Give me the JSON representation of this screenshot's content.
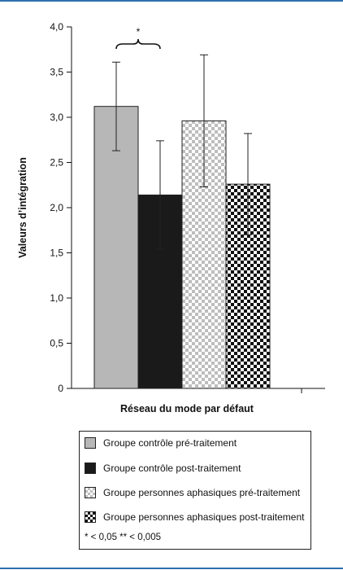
{
  "chart_data": {
    "type": "bar",
    "title": "",
    "xlabel": "Réseau du mode par défaut",
    "ylabel": "Valeurs d’intégration",
    "ylim": [
      0,
      4
    ],
    "yticks": [
      "0",
      "0,5",
      "1,0",
      "1,5",
      "2,0",
      "2,5",
      "3,0",
      "3,5",
      "4,0"
    ],
    "ytick_values": [
      0,
      0.5,
      1.0,
      1.5,
      2.0,
      2.5,
      3.0,
      3.5,
      4.0
    ],
    "categories": [
      "Réseau du mode par défaut"
    ],
    "series": [
      {
        "name": "Groupe contrôle pré-traitement",
        "value": 3.12,
        "error": 0.49,
        "color": "#b7b7b7",
        "fill": "grey"
      },
      {
        "name": "Groupe contrôle post-traitement",
        "value": 2.14,
        "error": 0.6,
        "color": "#1a1a1a",
        "fill": "black"
      },
      {
        "name": "Groupe personnes aphasiques pré-traitement",
        "value": 2.96,
        "error": 0.73,
        "color": "#bdbdbd",
        "fill": "light-check"
      },
      {
        "name": "Groupe personnes aphasiques post-traitement",
        "value": 2.26,
        "error": 0.56,
        "color": "#111111",
        "fill": "dark-check"
      }
    ],
    "significance": {
      "between": [
        0,
        1
      ],
      "label": "*"
    },
    "grid": false,
    "legend_position": "bottom",
    "footnote": "* < 0,05   ** < 0,005"
  },
  "colors": {
    "frame": "#2f6fb0"
  }
}
